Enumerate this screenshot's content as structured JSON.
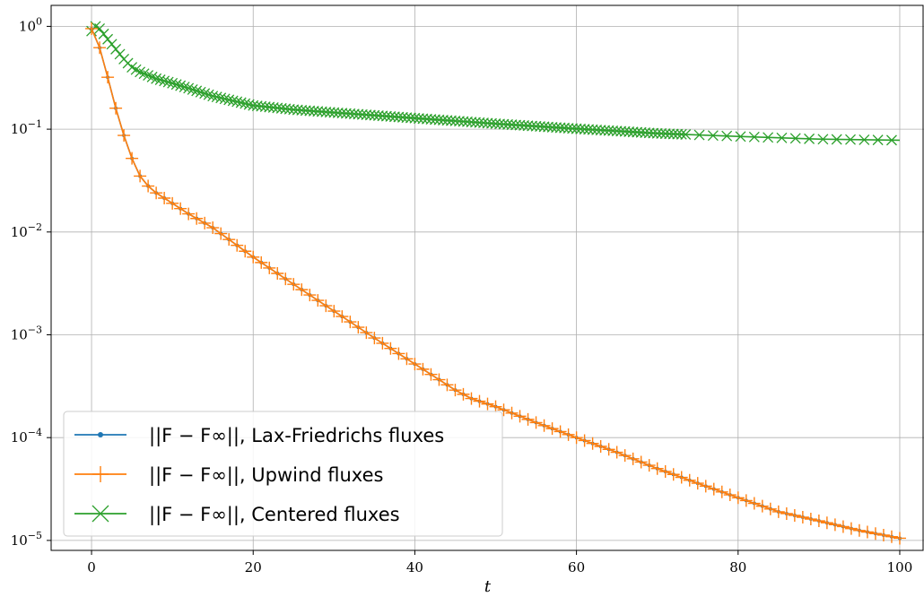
{
  "chart_data": {
    "type": "line",
    "title": "",
    "xlabel": "t",
    "ylabel": "",
    "xlim": [
      -5,
      103
    ],
    "ylim": [
      8e-06,
      1.6
    ],
    "yscale": "log",
    "grid": true,
    "legend_position": "lower-left",
    "x_ticks": [
      0,
      20,
      40,
      60,
      80,
      100
    ],
    "x_tick_labels": [
      "0",
      "20",
      "40",
      "60",
      "80",
      "100"
    ],
    "y_ticks": [
      1,
      0.1,
      0.01,
      0.001,
      0.0001,
      1e-05
    ],
    "y_tick_labels": [
      {
        "base": "10",
        "exp": "0"
      },
      {
        "base": "10",
        "exp": "−1"
      },
      {
        "base": "10",
        "exp": "−2"
      },
      {
        "base": "10",
        "exp": "−3"
      },
      {
        "base": "10",
        "exp": "−4"
      },
      {
        "base": "10",
        "exp": "−5"
      }
    ],
    "series": [
      {
        "name": "||F − F∞||, Lax-Friedrichs fluxes",
        "color": "#1f77b4",
        "marker": "dot",
        "x": [
          0,
          1,
          2,
          3,
          4,
          5,
          6,
          7,
          8,
          10,
          12,
          15,
          20,
          25,
          30,
          35,
          40,
          45,
          47,
          50,
          55,
          60,
          65,
          70,
          75,
          80,
          85,
          90,
          95,
          100
        ],
        "y": [
          0.95,
          0.62,
          0.32,
          0.16,
          0.087,
          0.052,
          0.035,
          0.028,
          0.024,
          0.019,
          0.015,
          0.011,
          0.0057,
          0.0031,
          0.0017,
          0.00093,
          0.00052,
          0.00029,
          0.00024,
          0.0002,
          0.00014,
          0.0001,
          7.2e-05,
          5e-05,
          3.6e-05,
          2.6e-05,
          1.9e-05,
          1.55e-05,
          1.25e-05,
          1.05e-05
        ]
      },
      {
        "name": "||F − F∞||, Upwind fluxes",
        "color": "#ff7f0e",
        "marker": "plus",
        "x": [
          0,
          1,
          2,
          3,
          4,
          5,
          6,
          7,
          8,
          10,
          12,
          15,
          20,
          25,
          30,
          35,
          40,
          45,
          47,
          50,
          55,
          60,
          65,
          70,
          75,
          80,
          85,
          90,
          95,
          100
        ],
        "y": [
          0.95,
          0.62,
          0.32,
          0.16,
          0.087,
          0.052,
          0.035,
          0.028,
          0.024,
          0.019,
          0.015,
          0.011,
          0.0057,
          0.0031,
          0.0017,
          0.00093,
          0.00052,
          0.00029,
          0.00024,
          0.0002,
          0.00014,
          0.0001,
          7.2e-05,
          5e-05,
          3.6e-05,
          2.6e-05,
          1.9e-05,
          1.55e-05,
          1.25e-05,
          1.05e-05
        ]
      },
      {
        "name": "||F − F∞||, Centered fluxes",
        "color": "#2ca02c",
        "marker": "x",
        "x": [
          0,
          0.5,
          1,
          2,
          3,
          4,
          5,
          6,
          8,
          10,
          12,
          15,
          20,
          25,
          30,
          40,
          50,
          60,
          70,
          80,
          90,
          100
        ],
        "y": [
          0.9,
          1.0,
          0.95,
          0.75,
          0.6,
          0.48,
          0.4,
          0.36,
          0.31,
          0.28,
          0.25,
          0.21,
          0.17,
          0.155,
          0.145,
          0.128,
          0.113,
          0.101,
          0.091,
          0.085,
          0.08,
          0.078
        ]
      }
    ]
  }
}
